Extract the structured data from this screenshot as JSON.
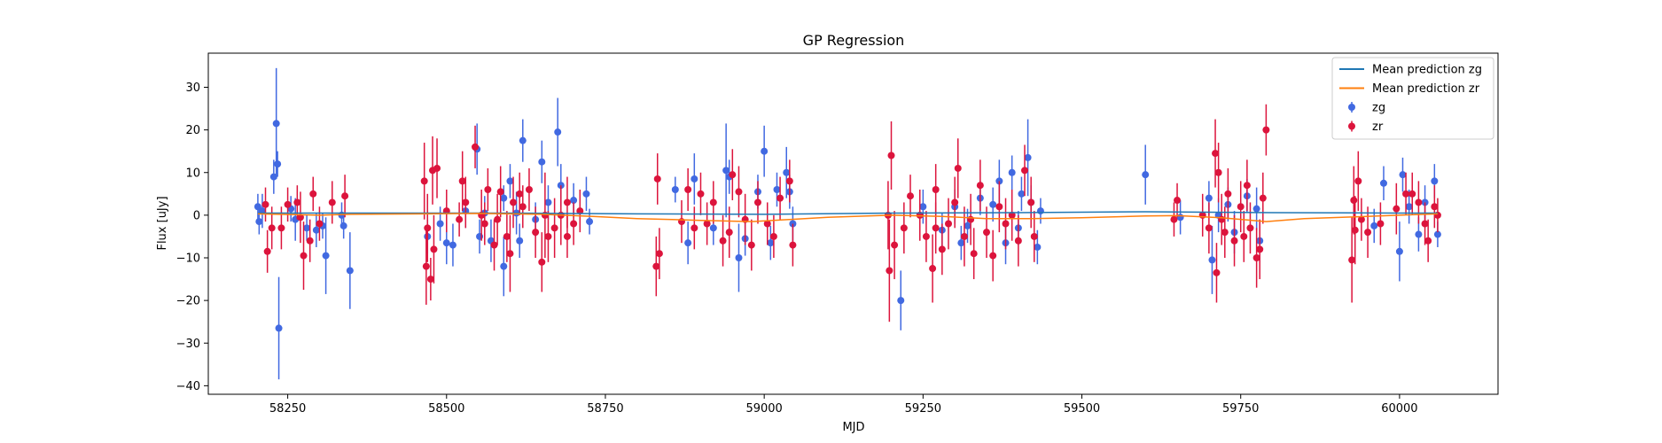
{
  "chart_data": {
    "type": "scatter",
    "title": "GP Regression",
    "xlabel": "MJD",
    "ylabel": "Flux [uJy]",
    "xlim": [
      58125,
      60155
    ],
    "ylim": [
      -42,
      38
    ],
    "xticks": [
      58250,
      58500,
      58750,
      59000,
      59250,
      59500,
      59750,
      60000
    ],
    "yticks": [
      -40,
      -30,
      -20,
      -10,
      0,
      10,
      20,
      30
    ],
    "legend_position": "top-right",
    "series": [
      {
        "name": "Mean prediction zg",
        "kind": "line",
        "color": "#1f77b4",
        "points": [
          [
            58203,
            0.5
          ],
          [
            58400,
            0.5
          ],
          [
            58600,
            0.5
          ],
          [
            58800,
            0.3
          ],
          [
            59000,
            0.2
          ],
          [
            59200,
            0.5
          ],
          [
            59400,
            0.6
          ],
          [
            59600,
            0.8
          ],
          [
            59800,
            0.6
          ],
          [
            60000,
            0.5
          ],
          [
            60060,
            0.5
          ]
        ]
      },
      {
        "name": "Mean prediction zr",
        "kind": "line",
        "color": "#ff7f0e",
        "points": [
          [
            58203,
            0.3
          ],
          [
            58300,
            0.0
          ],
          [
            58350,
            0.2
          ],
          [
            58465,
            0.3
          ],
          [
            58550,
            0.4
          ],
          [
            58650,
            0.2
          ],
          [
            58730,
            -0.3
          ],
          [
            58800,
            -0.8
          ],
          [
            58900,
            -1.2
          ],
          [
            58980,
            -1.5
          ],
          [
            59040,
            -1.0
          ],
          [
            59100,
            -0.5
          ],
          [
            59200,
            0.0
          ],
          [
            59280,
            -0.3
          ],
          [
            59350,
            -0.8
          ],
          [
            59420,
            -0.8
          ],
          [
            59500,
            -0.6
          ],
          [
            59600,
            -0.2
          ],
          [
            59650,
            -0.1
          ],
          [
            59720,
            -0.6
          ],
          [
            59790,
            -1.5
          ],
          [
            59850,
            -0.8
          ],
          [
            59930,
            -0.4
          ],
          [
            60000,
            0.0
          ],
          [
            60060,
            0.3
          ]
        ]
      },
      {
        "name": "zg",
        "kind": "errorbar",
        "color": "#4169e1",
        "points": [
          [
            58203,
            2.0,
            3
          ],
          [
            58205,
            -1.5,
            3
          ],
          [
            58210,
            1.0,
            4
          ],
          [
            58228,
            9.0,
            4
          ],
          [
            58232,
            21.5,
            13
          ],
          [
            58234,
            12.0,
            3
          ],
          [
            58236,
            -26.5,
            12
          ],
          [
            58255,
            1.5,
            3
          ],
          [
            58262,
            -1.0,
            5
          ],
          [
            58280,
            -3.0,
            3
          ],
          [
            58295,
            -3.5,
            4
          ],
          [
            58305,
            -2.5,
            3
          ],
          [
            58310,
            -9.5,
            9
          ],
          [
            58335,
            0.0,
            3
          ],
          [
            58338,
            -2.5,
            3
          ],
          [
            58348,
            -13.0,
            9
          ],
          [
            58470,
            -5.0,
            4
          ],
          [
            58490,
            -2.0,
            4
          ],
          [
            58500,
            -6.5,
            5
          ],
          [
            58510,
            -7.0,
            5
          ],
          [
            58530,
            1.0,
            4
          ],
          [
            58548,
            15.5,
            6
          ],
          [
            58552,
            -5.0,
            4
          ],
          [
            58560,
            0.5,
            4
          ],
          [
            58570,
            -6.0,
            5
          ],
          [
            58590,
            -12.0,
            7
          ],
          [
            58600,
            8.0,
            4
          ],
          [
            58610,
            0.5,
            5
          ],
          [
            58620,
            17.5,
            5
          ],
          [
            58640,
            -1.0,
            4
          ],
          [
            58650,
            12.5,
            5
          ],
          [
            58660,
            3.0,
            4
          ],
          [
            58675,
            19.5,
            8
          ],
          [
            58680,
            7.0,
            5
          ],
          [
            58700,
            3.5,
            4
          ],
          [
            58720,
            5.0,
            4
          ],
          [
            58725,
            -1.5,
            3
          ],
          [
            58615,
            -6.0,
            4
          ],
          [
            58590,
            4.0,
            3
          ],
          [
            58860,
            6.0,
            3
          ],
          [
            58880,
            -6.5,
            5
          ],
          [
            58890,
            8.5,
            6
          ],
          [
            58940,
            10.5,
            11
          ],
          [
            58945,
            9.0,
            4
          ],
          [
            58960,
            -10.0,
            8
          ],
          [
            58970,
            -5.5,
            4
          ],
          [
            58990,
            5.5,
            4
          ],
          [
            59000,
            15.0,
            6
          ],
          [
            59010,
            -6.5,
            4
          ],
          [
            59020,
            6.0,
            4
          ],
          [
            59035,
            10.0,
            6
          ],
          [
            59040,
            5.5,
            4
          ],
          [
            59045,
            -2.0,
            4
          ],
          [
            58920,
            -3.0,
            4
          ],
          [
            59215,
            -20.0,
            7
          ],
          [
            59250,
            2.0,
            4
          ],
          [
            59280,
            -3.5,
            4
          ],
          [
            59300,
            2.0,
            4
          ],
          [
            59320,
            -2.5,
            4
          ],
          [
            59340,
            4.0,
            4
          ],
          [
            59360,
            2.5,
            4
          ],
          [
            59370,
            8.0,
            5
          ],
          [
            59380,
            -6.5,
            5
          ],
          [
            59390,
            10.0,
            4
          ],
          [
            59405,
            5.0,
            4
          ],
          [
            59415,
            13.5,
            9
          ],
          [
            59420,
            3.0,
            4
          ],
          [
            59430,
            -7.5,
            4
          ],
          [
            59435,
            1.0,
            3
          ],
          [
            59310,
            -6.5,
            4
          ],
          [
            59400,
            -3.0,
            4
          ],
          [
            59600,
            9.5,
            7
          ],
          [
            59655,
            -0.5,
            4
          ],
          [
            59700,
            4.0,
            4
          ],
          [
            59705,
            -10.5,
            8
          ],
          [
            59715,
            0.0,
            4
          ],
          [
            59730,
            2.5,
            4
          ],
          [
            59740,
            -4.0,
            5
          ],
          [
            59760,
            4.5,
            4
          ],
          [
            59775,
            1.5,
            5
          ],
          [
            59780,
            -6.0,
            5
          ],
          [
            59960,
            -2.5,
            4
          ],
          [
            59975,
            7.5,
            4
          ],
          [
            60000,
            -8.5,
            7
          ],
          [
            60005,
            9.5,
            4
          ],
          [
            60015,
            2.0,
            4
          ],
          [
            60030,
            -4.5,
            4
          ],
          [
            60040,
            3.0,
            4
          ],
          [
            60055,
            8.0,
            4
          ],
          [
            60060,
            -4.5,
            3
          ]
        ]
      },
      {
        "name": "zr",
        "kind": "errorbar",
        "color": "#dc143c",
        "points": [
          [
            58215,
            2.5,
            4
          ],
          [
            58218,
            -8.5,
            5
          ],
          [
            58225,
            -3.0,
            5
          ],
          [
            58240,
            -3.0,
            5
          ],
          [
            58250,
            2.5,
            4
          ],
          [
            58265,
            3.0,
            4
          ],
          [
            58270,
            -0.5,
            6
          ],
          [
            58275,
            -9.5,
            8
          ],
          [
            58285,
            -6.0,
            5
          ],
          [
            58290,
            5.0,
            4
          ],
          [
            58300,
            -2.0,
            4
          ],
          [
            58320,
            3.0,
            5
          ],
          [
            58340,
            4.5,
            5
          ],
          [
            58465,
            8.0,
            9
          ],
          [
            58468,
            -12.0,
            9
          ],
          [
            58470,
            -3.0,
            8
          ],
          [
            58475,
            -15.0,
            5
          ],
          [
            58478,
            10.5,
            8
          ],
          [
            58480,
            -8.0,
            8
          ],
          [
            58485,
            11.0,
            7
          ],
          [
            58500,
            1.0,
            5
          ],
          [
            58520,
            -1.0,
            4
          ],
          [
            58525,
            8.0,
            7
          ],
          [
            58530,
            3.0,
            6
          ],
          [
            58545,
            16.0,
            5
          ],
          [
            58555,
            0.0,
            6
          ],
          [
            58560,
            -2.0,
            5
          ],
          [
            58565,
            6.0,
            5
          ],
          [
            58575,
            -7.0,
            6
          ],
          [
            58585,
            5.5,
            6
          ],
          [
            58595,
            -5.0,
            6
          ],
          [
            58605,
            3.0,
            6
          ],
          [
            58615,
            5.0,
            5
          ],
          [
            58620,
            2.0,
            5
          ],
          [
            58630,
            6.0,
            5
          ],
          [
            58640,
            -4.0,
            6
          ],
          [
            58650,
            -11.0,
            7
          ],
          [
            58660,
            -5.0,
            6
          ],
          [
            58670,
            -3.0,
            7
          ],
          [
            58680,
            0.0,
            7
          ],
          [
            58690,
            3.0,
            6
          ],
          [
            58700,
            -2.0,
            5
          ],
          [
            58710,
            1.0,
            5
          ],
          [
            58580,
            -1.0,
            6
          ],
          [
            58600,
            -9.0,
            9
          ],
          [
            58655,
            0.0,
            10
          ],
          [
            58690,
            -5.0,
            5
          ],
          [
            58830,
            -12.0,
            7
          ],
          [
            58832,
            8.5,
            6
          ],
          [
            58835,
            -9.0,
            6
          ],
          [
            58870,
            -1.5,
            5
          ],
          [
            58880,
            6.0,
            5
          ],
          [
            58890,
            -3.0,
            5
          ],
          [
            58900,
            5.0,
            5
          ],
          [
            58910,
            -2.0,
            5
          ],
          [
            58920,
            3.0,
            5
          ],
          [
            58935,
            -6.0,
            6
          ],
          [
            58945,
            -4.0,
            6
          ],
          [
            58960,
            5.5,
            6
          ],
          [
            58970,
            -1.0,
            6
          ],
          [
            58980,
            -7.0,
            6
          ],
          [
            58990,
            3.0,
            5
          ],
          [
            59005,
            -2.0,
            5
          ],
          [
            59015,
            -5.0,
            5
          ],
          [
            59025,
            4.0,
            5
          ],
          [
            59040,
            8.0,
            5
          ],
          [
            59045,
            -7.0,
            5
          ],
          [
            58950,
            9.5,
            6
          ],
          [
            59195,
            0.0,
            8
          ],
          [
            59197,
            -13.0,
            12
          ],
          [
            59200,
            14.0,
            8
          ],
          [
            59205,
            -7.0,
            8
          ],
          [
            59220,
            -3.0,
            6
          ],
          [
            59230,
            4.5,
            5
          ],
          [
            59245,
            0.0,
            6
          ],
          [
            59255,
            -5.0,
            6
          ],
          [
            59265,
            -12.5,
            8
          ],
          [
            59270,
            6.0,
            6
          ],
          [
            59280,
            -8.0,
            6
          ],
          [
            59290,
            -2.0,
            6
          ],
          [
            59300,
            3.0,
            6
          ],
          [
            59305,
            11.0,
            7
          ],
          [
            59315,
            -5.0,
            7
          ],
          [
            59325,
            -1.0,
            6
          ],
          [
            59340,
            7.0,
            6
          ],
          [
            59350,
            -4.0,
            6
          ],
          [
            59360,
            -9.5,
            6
          ],
          [
            59370,
            2.0,
            6
          ],
          [
            59380,
            -2.0,
            6
          ],
          [
            59390,
            0.0,
            6
          ],
          [
            59400,
            -6.0,
            6
          ],
          [
            59410,
            10.5,
            6
          ],
          [
            59420,
            3.0,
            6
          ],
          [
            59425,
            -5.0,
            6
          ],
          [
            59270,
            -3.0,
            6
          ],
          [
            59330,
            -9.0,
            6
          ],
          [
            59645,
            -1.0,
            4
          ],
          [
            59650,
            3.5,
            4
          ],
          [
            59690,
            0.0,
            5
          ],
          [
            59700,
            -3.0,
            6
          ],
          [
            59710,
            14.5,
            8
          ],
          [
            59712,
            -13.5,
            7
          ],
          [
            59715,
            10.0,
            7
          ],
          [
            59720,
            -1.0,
            6
          ],
          [
            59730,
            5.0,
            6
          ],
          [
            59740,
            -6.0,
            6
          ],
          [
            59750,
            2.0,
            6
          ],
          [
            59760,
            7.0,
            6
          ],
          [
            59765,
            -3.0,
            6
          ],
          [
            59775,
            -10.0,
            7
          ],
          [
            59780,
            -8.0,
            7
          ],
          [
            59785,
            4.0,
            6
          ],
          [
            59790,
            20.0,
            6
          ],
          [
            59725,
            -4.0,
            6
          ],
          [
            59755,
            -5.0,
            6
          ],
          [
            59925,
            -10.5,
            10
          ],
          [
            59928,
            3.5,
            8
          ],
          [
            59930,
            -3.5,
            8
          ],
          [
            59935,
            8.0,
            7
          ],
          [
            59940,
            -1.0,
            5
          ],
          [
            59950,
            -4.0,
            6
          ],
          [
            59970,
            -2.0,
            5
          ],
          [
            59995,
            1.5,
            6
          ],
          [
            60010,
            5.0,
            5
          ],
          [
            60020,
            5.0,
            5
          ],
          [
            60030,
            3.0,
            5
          ],
          [
            60040,
            -2.0,
            5
          ],
          [
            60045,
            -6.0,
            5
          ],
          [
            60055,
            2.0,
            5
          ],
          [
            60060,
            0.0,
            4
          ]
        ]
      }
    ]
  }
}
